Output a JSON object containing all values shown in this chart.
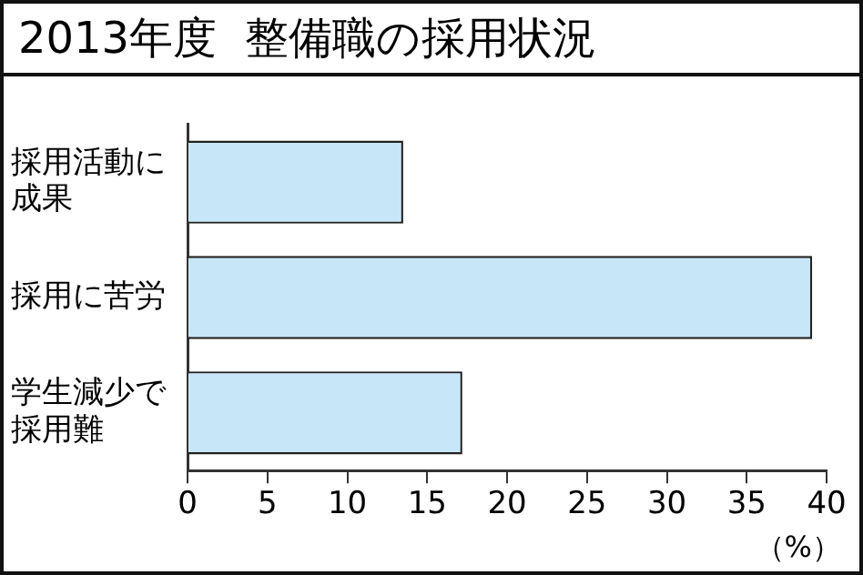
{
  "chart_data": {
    "type": "bar",
    "orientation": "horizontal",
    "title": "2013年度  整備職の採用状況",
    "categories": [
      "採用活動に成果",
      "採用に苦労",
      "学生減少で採用難"
    ],
    "values": [
      13.5,
      39.1,
      17.2
    ],
    "color": "#c7e7f9",
    "xlim": [
      0,
      40
    ],
    "xticks": [
      0,
      5,
      10,
      15,
      20,
      25,
      30,
      35,
      40
    ],
    "xlabel": "（%）",
    "grid": false,
    "legend": false
  }
}
